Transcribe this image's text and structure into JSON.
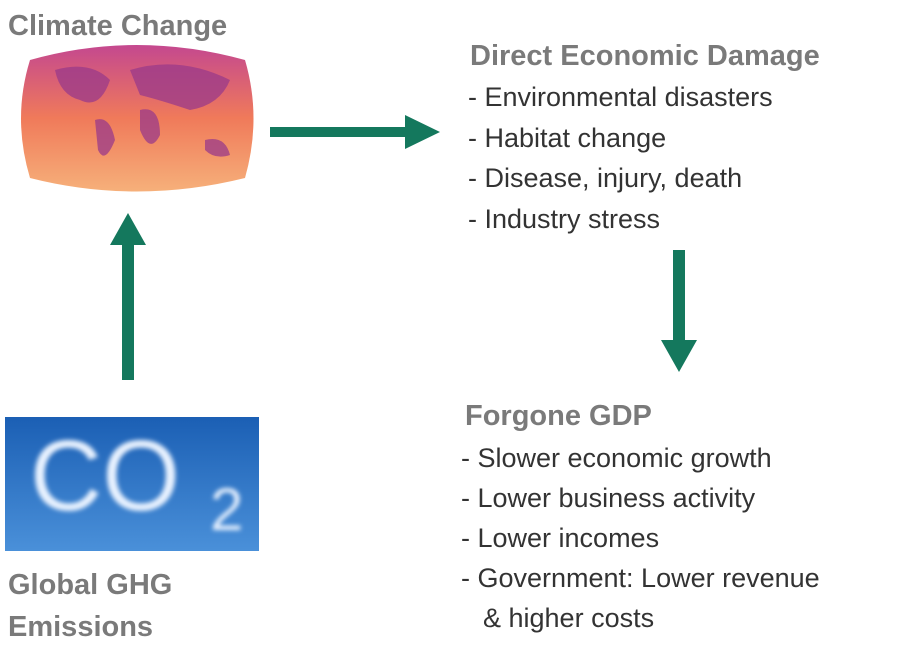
{
  "nodes": [
    {
      "title": "Climate Change"
    },
    {
      "title": "Direct Economic Damage",
      "items": [
        "- Environmental disasters",
        "- Habitat change",
        "- Disease, injury, death",
        "- Industry stress"
      ]
    },
    {
      "title": "Forgone GDP",
      "items": [
        "- Slower economic growth",
        "- Lower business activity",
        "- Lower incomes",
        "- Government: Lower revenue",
        "& higher costs"
      ]
    },
    {
      "title": "Global GHG Emissions",
      "image_text": [
        "CO",
        "2"
      ]
    }
  ]
}
